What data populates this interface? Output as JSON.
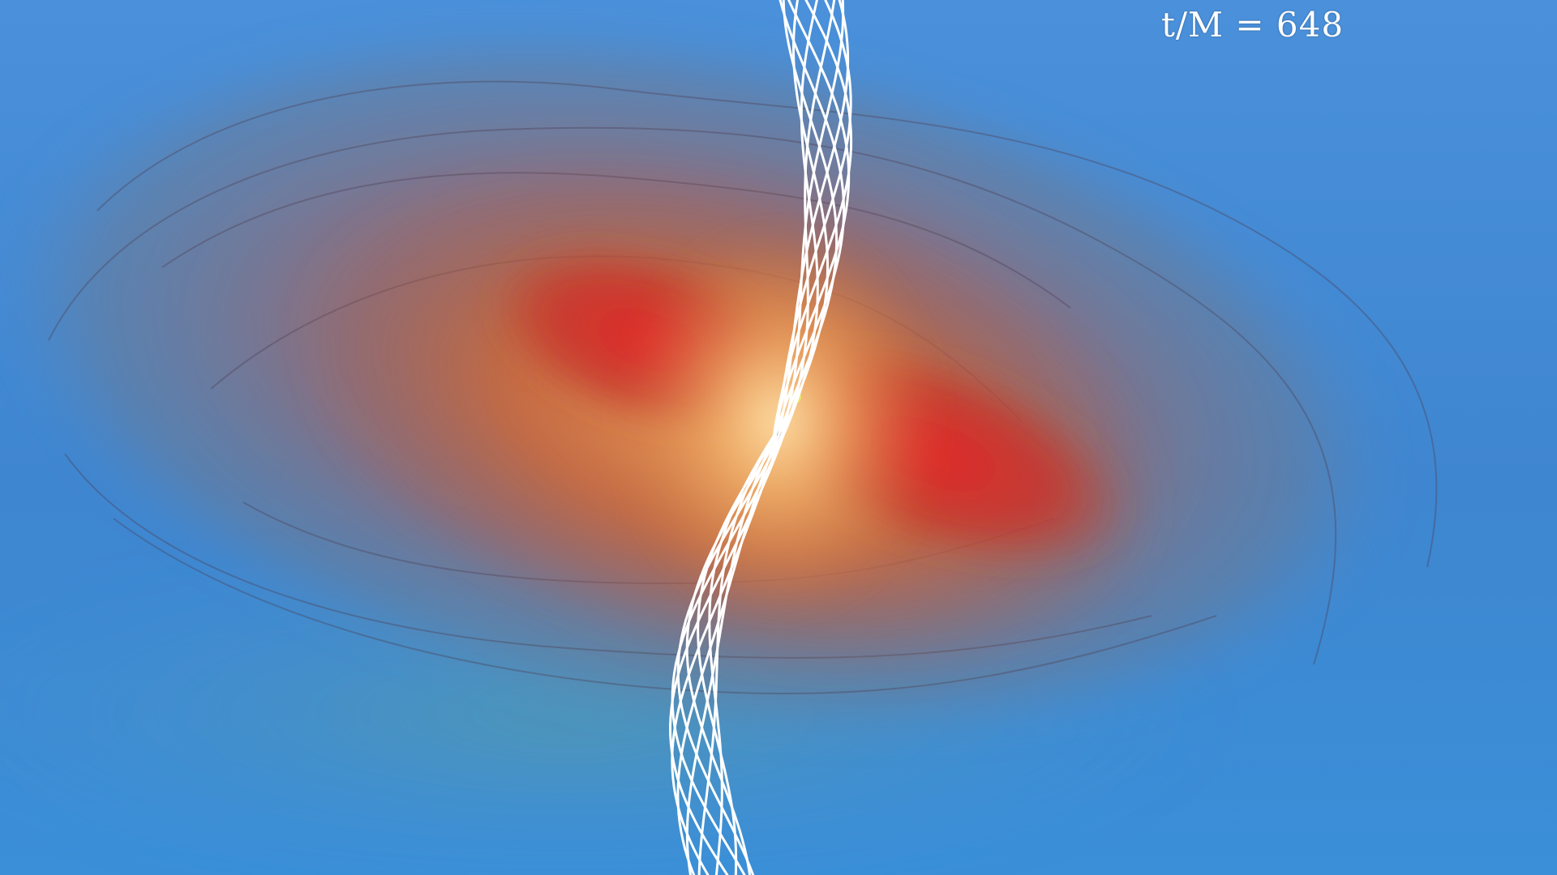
{
  "overlay": {
    "time_label": "t/M = 648"
  },
  "colors": {
    "background_blue": "#3f86d0",
    "outer_shell": "#7a6f86",
    "mid_orange": "#c8713c",
    "inner_red": "#d8252b",
    "core_glow": "#f5c98a",
    "field_lines": "#ffffff"
  },
  "scene": {
    "description_tags": [
      "accretion-disk-render",
      "magnetic-field-lines",
      "black-hole"
    ],
    "field_line_count": 10
  }
}
